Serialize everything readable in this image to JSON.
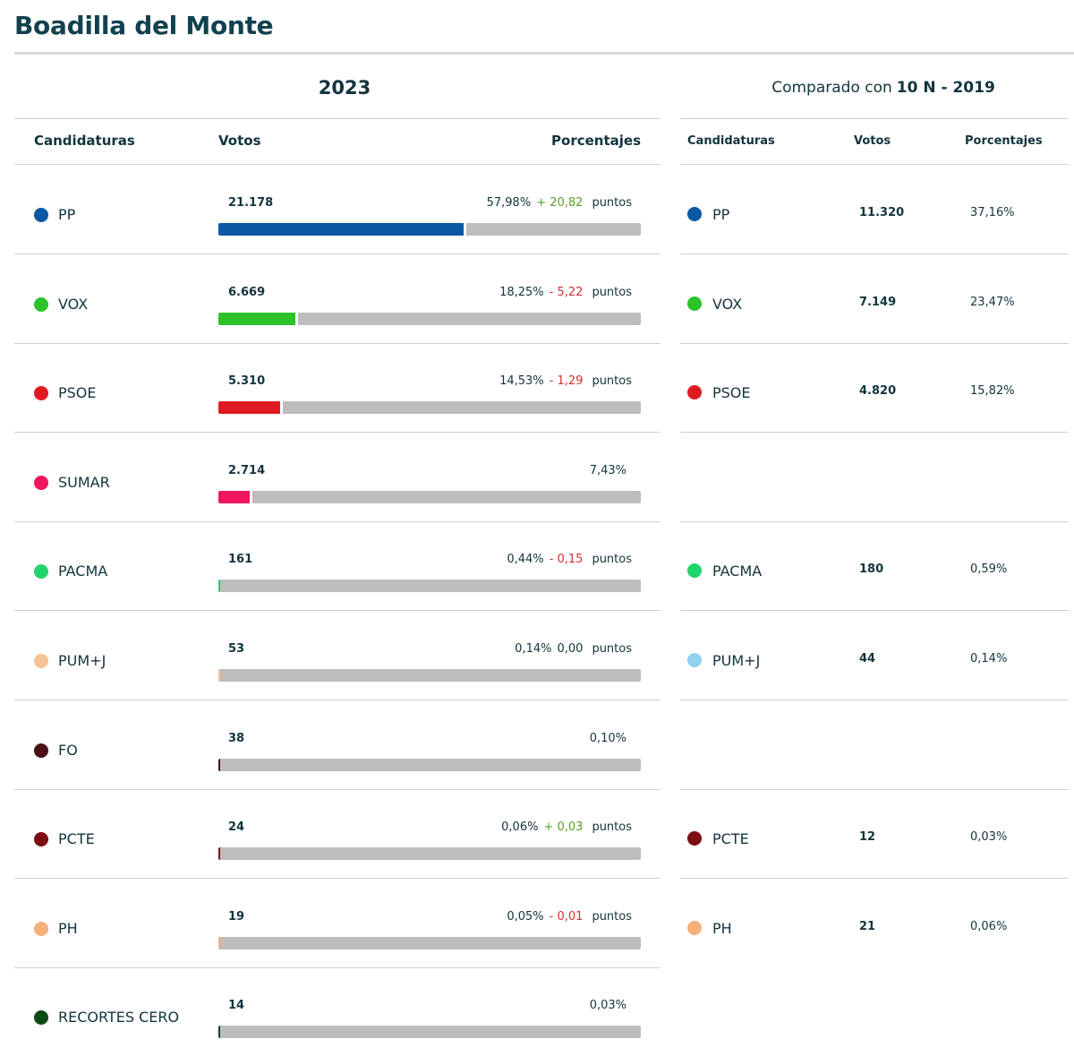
{
  "title": "Boadilla del Monte",
  "year": "2023",
  "compared_prefix": "Comparado con",
  "compared_election": "10 N - 2019",
  "headers_2023": {
    "candidatures": "Candidaturas",
    "votes": "Votos",
    "percentages": "Porcentajes"
  },
  "headers_2019": {
    "candidatures": "Candidaturas",
    "votes": "Votos",
    "percentages": "Porcentajes"
  },
  "points_label": "puntos",
  "results_2023": [
    {
      "party": "PP",
      "color": "#0a57a4",
      "votes": "21.178",
      "percent": "57,98%",
      "percent_value": 57.98,
      "diff": "+ 20,82",
      "diff_sign": "up"
    },
    {
      "party": "VOX",
      "color": "#2ec22a",
      "votes": "6.669",
      "percent": "18,25%",
      "percent_value": 18.25,
      "diff": "- 5,22",
      "diff_sign": "down"
    },
    {
      "party": "PSOE",
      "color": "#e01a22",
      "votes": "5.310",
      "percent": "14,53%",
      "percent_value": 14.53,
      "diff": "- 1,29",
      "diff_sign": "down"
    },
    {
      "party": "SUMAR",
      "color": "#f0155f",
      "votes": "2.714",
      "percent": "7,43%",
      "percent_value": 7.43,
      "diff": "",
      "diff_sign": ""
    },
    {
      "party": "PACMA",
      "color": "#22d46b",
      "votes": "161",
      "percent": "0,44%",
      "percent_value": 0.44,
      "diff": "- 0,15",
      "diff_sign": "down"
    },
    {
      "party": "PUM+J",
      "color": "#f6c193",
      "votes": "53",
      "percent": "0,14%",
      "percent_value": 0.14,
      "diff": "0,00",
      "diff_sign": "zero"
    },
    {
      "party": "FO",
      "color": "#4a0e17",
      "votes": "38",
      "percent": "0,10%",
      "percent_value": 0.1,
      "diff": "",
      "diff_sign": ""
    },
    {
      "party": "PCTE",
      "color": "#7a0e12",
      "votes": "24",
      "percent": "0,06%",
      "percent_value": 0.06,
      "diff": "+ 0,03",
      "diff_sign": "up"
    },
    {
      "party": "PH",
      "color": "#f5b07c",
      "votes": "19",
      "percent": "0,05%",
      "percent_value": 0.05,
      "diff": "- 0,01",
      "diff_sign": "down"
    },
    {
      "party": "RECORTES CERO",
      "color": "#0a4a16",
      "votes": "14",
      "percent": "0,03%",
      "percent_value": 0.03,
      "diff": "",
      "diff_sign": ""
    }
  ],
  "results_2019": [
    {
      "party": "PP",
      "color": "#0a57a4",
      "votes": "11.320",
      "percent": "37,16%"
    },
    {
      "party": "VOX",
      "color": "#2ec22a",
      "votes": "7.149",
      "percent": "23,47%"
    },
    {
      "party": "PSOE",
      "color": "#e01a22",
      "votes": "4.820",
      "percent": "15,82%"
    },
    null,
    {
      "party": "PACMA",
      "color": "#22d46b",
      "votes": "180",
      "percent": "0,59%"
    },
    {
      "party": "PUM+J",
      "color": "#8fd3ee",
      "votes": "44",
      "percent": "0,14%"
    },
    null,
    {
      "party": "PCTE",
      "color": "#7a0e12",
      "votes": "12",
      "percent": "0,03%"
    },
    {
      "party": "PH",
      "color": "#f5b07c",
      "votes": "21",
      "percent": "0,06%"
    },
    null
  ]
}
